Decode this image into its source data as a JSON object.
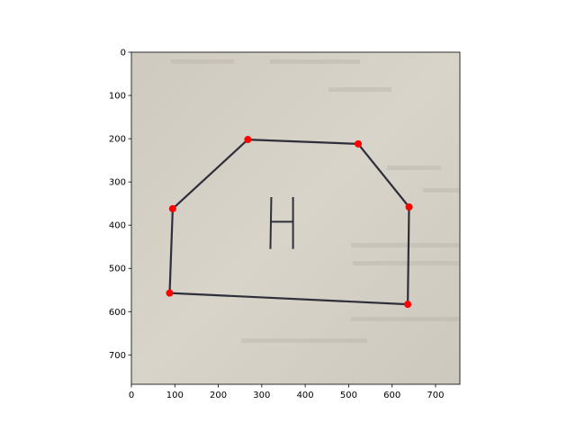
{
  "chart_data": {
    "type": "scatter",
    "title": "",
    "xlabel": "",
    "ylabel": "",
    "xlim": [
      0,
      756
    ],
    "ylim": [
      768,
      0
    ],
    "y_inverted": true,
    "x_ticks": [
      "0",
      "100",
      "200",
      "300",
      "400",
      "500",
      "600",
      "700"
    ],
    "y_ticks": [
      "0",
      "100",
      "200",
      "300",
      "400",
      "500",
      "600",
      "700"
    ],
    "grid": false,
    "background": "photo of a hand-drawn house outline on paper",
    "drawn_letter": "H",
    "series": [
      {
        "marker": "circle",
        "color": "#ff0000",
        "points": [
          {
            "x": 268,
            "y": 202
          },
          {
            "x": 522,
            "y": 212
          },
          {
            "x": 95,
            "y": 362
          },
          {
            "x": 639,
            "y": 358
          },
          {
            "x": 88,
            "y": 557
          },
          {
            "x": 636,
            "y": 583
          }
        ]
      }
    ],
    "outline": [
      {
        "x": 268,
        "y": 202
      },
      {
        "x": 522,
        "y": 212
      },
      {
        "x": 639,
        "y": 358
      },
      {
        "x": 636,
        "y": 583
      },
      {
        "x": 88,
        "y": 557
      },
      {
        "x": 95,
        "y": 362
      }
    ]
  }
}
